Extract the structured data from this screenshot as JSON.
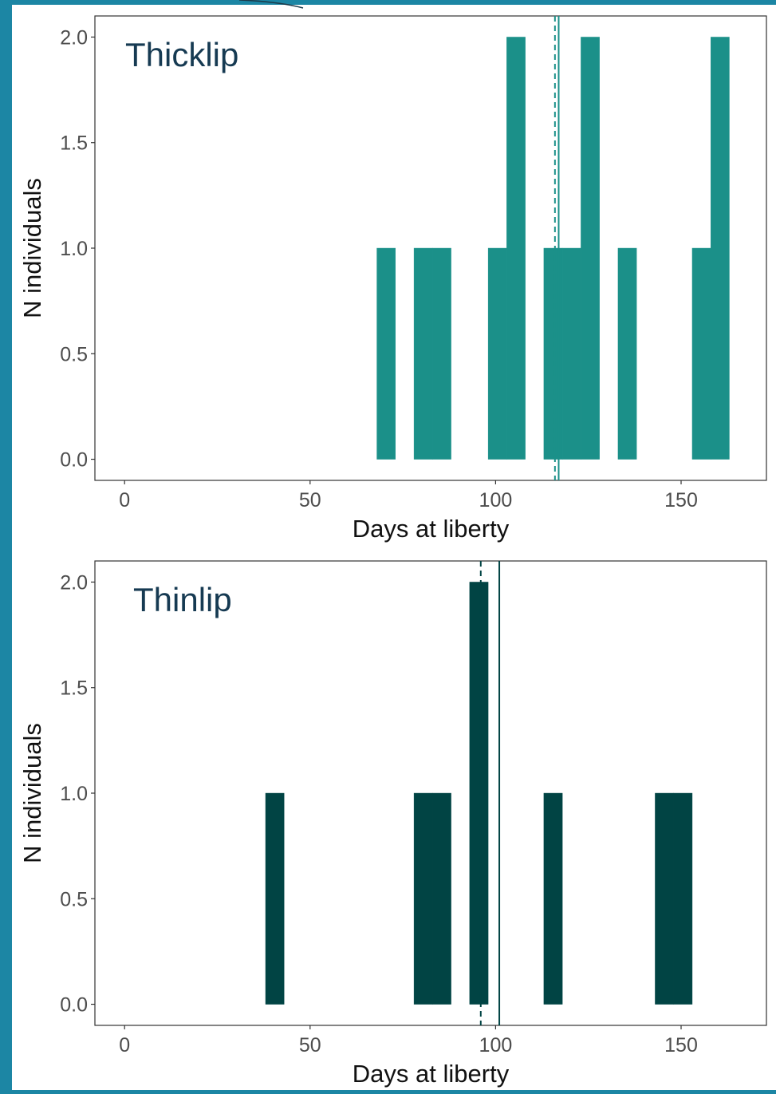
{
  "chart_data": [
    {
      "type": "bar",
      "title": "Thicklip",
      "xlabel": "Days at liberty",
      "ylabel": "N individuals",
      "xlim": [
        -8,
        173
      ],
      "ylim": [
        -0.1,
        2.1
      ],
      "xticks": [
        0,
        50,
        100,
        150
      ],
      "yticks": [
        0.0,
        0.5,
        1.0,
        1.5,
        2.0
      ],
      "ytick_labels": [
        "0.0",
        "0.5",
        "1.0",
        "1.5",
        "2.0"
      ],
      "bin_width": 5,
      "bins": [
        {
          "x0": 68,
          "x1": 73,
          "value": 1
        },
        {
          "x0": 78,
          "x1": 83,
          "value": 1
        },
        {
          "x0": 83,
          "x1": 88,
          "value": 1
        },
        {
          "x0": 98,
          "x1": 103,
          "value": 1
        },
        {
          "x0": 103,
          "x1": 108,
          "value": 2
        },
        {
          "x0": 113,
          "x1": 118,
          "value": 1
        },
        {
          "x0": 118,
          "x1": 123,
          "value": 1
        },
        {
          "x0": 123,
          "x1": 128,
          "value": 2
        },
        {
          "x0": 133,
          "x1": 138,
          "value": 1
        },
        {
          "x0": 153,
          "x1": 158,
          "value": 1
        },
        {
          "x0": 158,
          "x1": 163,
          "value": 2
        }
      ],
      "dashed_line_x": 116,
      "solid_line_x": 117,
      "bar_color": "#1b9089",
      "line_color": "#1b9089",
      "grid": false
    },
    {
      "type": "bar",
      "title": "Thinlip",
      "xlabel": "Days at liberty",
      "ylabel": "N individuals",
      "xlim": [
        -8,
        173
      ],
      "ylim": [
        -0.1,
        2.1
      ],
      "xticks": [
        0,
        50,
        100,
        150
      ],
      "yticks": [
        0.0,
        0.5,
        1.0,
        1.5,
        2.0
      ],
      "ytick_labels": [
        "0.0",
        "0.5",
        "1.0",
        "1.5",
        "2.0"
      ],
      "bin_width": 5,
      "bins": [
        {
          "x0": 38,
          "x1": 43,
          "value": 1
        },
        {
          "x0": 78,
          "x1": 83,
          "value": 1
        },
        {
          "x0": 83,
          "x1": 88,
          "value": 1
        },
        {
          "x0": 93,
          "x1": 98,
          "value": 2
        },
        {
          "x0": 113,
          "x1": 118,
          "value": 1
        },
        {
          "x0": 143,
          "x1": 148,
          "value": 1
        },
        {
          "x0": 148,
          "x1": 153,
          "value": 1
        }
      ],
      "dashed_line_x": 96,
      "solid_line_x": 101,
      "bar_color": "#014444",
      "line_color": "#014444",
      "grid": false
    }
  ],
  "colors": {
    "background": "#1c86a4",
    "title_text": "#163a52"
  }
}
